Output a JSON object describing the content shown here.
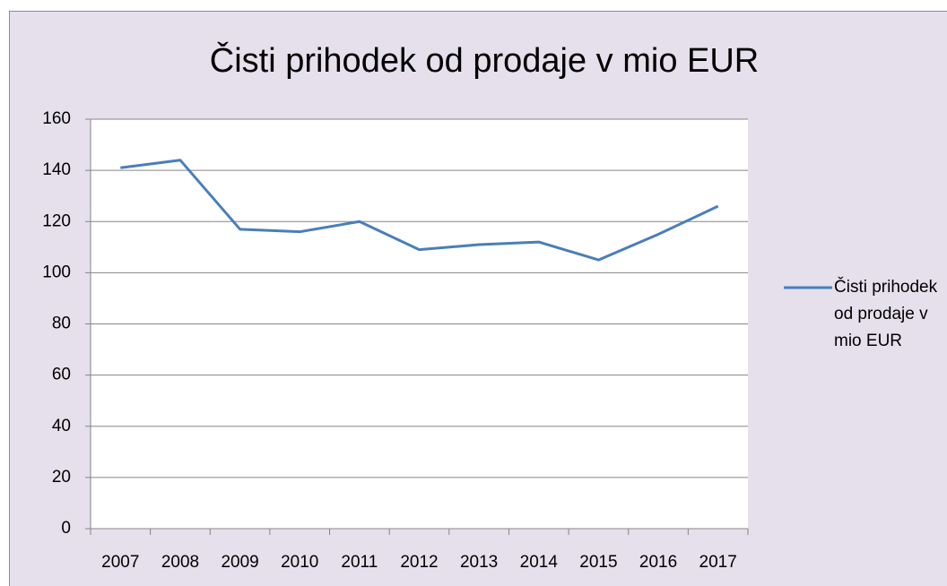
{
  "chart_data": {
    "type": "line",
    "title": "Čisti prihodek od prodaje v mio EUR",
    "categories": [
      "2007",
      "2008",
      "2009",
      "2010",
      "2011",
      "2012",
      "2013",
      "2014",
      "2015",
      "2016",
      "2017"
    ],
    "series": [
      {
        "name": "Čisti prihodek od prodaje v mio EUR",
        "color": "#4a7ebb",
        "values": [
          141,
          144,
          117,
          116,
          120,
          109,
          111,
          112,
          105,
          115,
          126
        ]
      }
    ],
    "ylim": [
      0,
      160
    ],
    "yticks": [
      0,
      20,
      40,
      60,
      80,
      100,
      120,
      140,
      160
    ],
    "grid": true,
    "legend": "right"
  }
}
